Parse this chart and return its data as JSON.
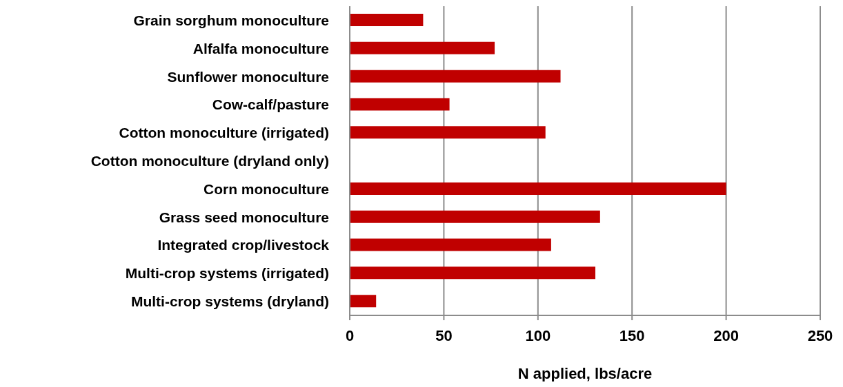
{
  "chart_data": {
    "type": "bar",
    "orientation": "horizontal",
    "categories": [
      "Grain sorghum monoculture",
      "Alfalfa monoculture",
      "Sunflower monoculture",
      "Cow-calf/pasture",
      "Cotton monoculture (irrigated)",
      "Cotton monoculture (dryland only)",
      "Corn monoculture",
      "Grass seed monoculture",
      "Integrated crop/livestock",
      "Multi-crop systems (irrigated)",
      "Multi-crop systems (dryland)"
    ],
    "values": [
      39,
      77,
      112,
      53,
      104,
      null,
      200,
      133,
      107,
      130.5,
      14
    ],
    "color": "#c00000",
    "xlabel": "N applied, lbs/acre",
    "xlim": [
      0,
      250
    ],
    "xticks": [
      0,
      50,
      100,
      150,
      200,
      250
    ],
    "grid": "x",
    "legend": false
  }
}
